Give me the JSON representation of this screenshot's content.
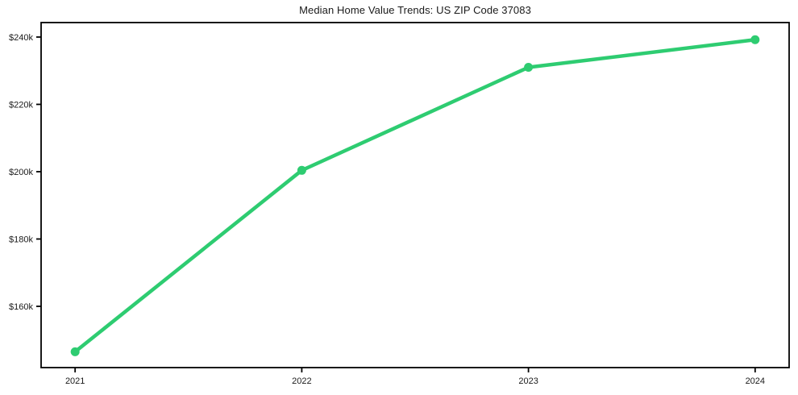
{
  "page": {
    "background_color": "#ffffff"
  },
  "chart_data": {
    "type": "line",
    "title": "Median Home Value Trends: US ZIP Code 37083",
    "xlabel": "",
    "ylabel": "",
    "x": [
      2021,
      2022,
      2023,
      2024
    ],
    "categories": [
      "2021",
      "2022",
      "2023",
      "2024"
    ],
    "series": [
      {
        "name": "Median Home Value",
        "values": [
          146500,
          200400,
          231000,
          239200
        ],
        "color": "#2ecc71"
      }
    ],
    "yticks": [
      160000,
      180000,
      200000,
      220000,
      240000
    ],
    "ytick_labels": [
      "$160k",
      "$180k",
      "$200k",
      "$220k",
      "$240k"
    ],
    "xlim": [
      2020.85,
      2024.15
    ],
    "ylim": [
      141800,
      244300
    ],
    "grid": false,
    "legend": "none",
    "line_width": 4.5,
    "marker_radius": 5.5,
    "axis_color": "#000000",
    "text_color": "#1a1a1a",
    "tick_font_size": 11,
    "title_font_size": 13
  }
}
